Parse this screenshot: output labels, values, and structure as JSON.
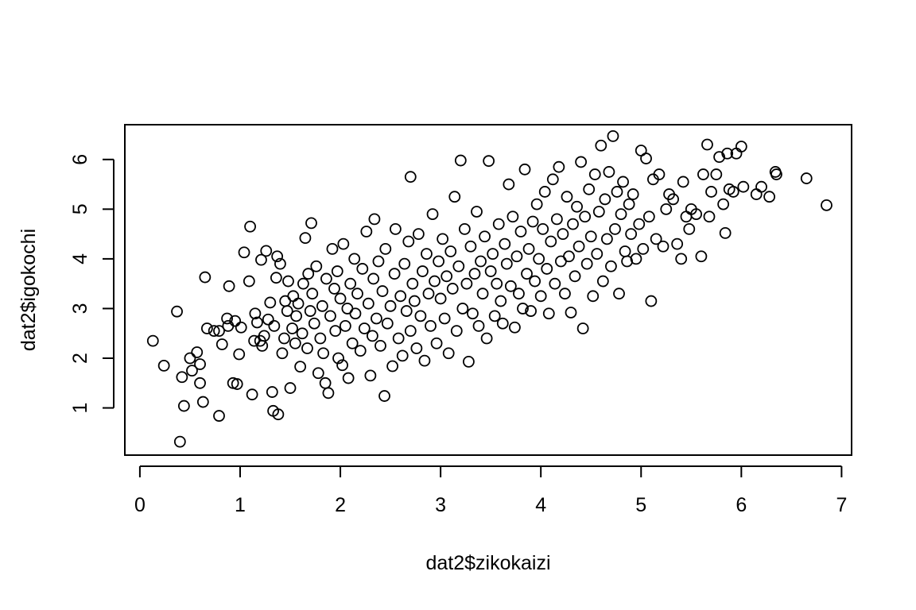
{
  "chart_data": {
    "type": "scatter",
    "title": "",
    "xlabel": "dat2$zikokaizi",
    "ylabel": "dat2$igokochi",
    "xlim": [
      -0.15,
      7.1
    ],
    "ylim": [
      0.05,
      6.7
    ],
    "xticks": [
      "0",
      "1",
      "2",
      "3",
      "4",
      "5",
      "6",
      "7"
    ],
    "yticks": [
      "1",
      "2",
      "3",
      "4",
      "5",
      "6"
    ],
    "grid": false,
    "legend": "none",
    "marker": "open-circle",
    "color": "#000000",
    "points": [
      [
        0.13,
        2.35
      ],
      [
        0.24,
        1.85
      ],
      [
        0.37,
        2.94
      ],
      [
        0.4,
        0.32
      ],
      [
        0.44,
        1.04
      ],
      [
        0.42,
        1.62
      ],
      [
        0.5,
        2.0
      ],
      [
        0.52,
        1.75
      ],
      [
        0.57,
        2.12
      ],
      [
        0.6,
        1.88
      ],
      [
        0.6,
        1.5
      ],
      [
        0.63,
        1.12
      ],
      [
        0.65,
        3.63
      ],
      [
        0.67,
        2.6
      ],
      [
        0.74,
        2.55
      ],
      [
        0.79,
        2.55
      ],
      [
        0.79,
        0.84
      ],
      [
        0.82,
        2.28
      ],
      [
        0.87,
        2.8
      ],
      [
        0.88,
        2.65
      ],
      [
        0.89,
        3.45
      ],
      [
        0.93,
        1.5
      ],
      [
        0.95,
        2.75
      ],
      [
        0.97,
        1.48
      ],
      [
        0.99,
        2.08
      ],
      [
        1.01,
        2.62
      ],
      [
        1.04,
        4.13
      ],
      [
        1.09,
        3.55
      ],
      [
        1.1,
        4.65
      ],
      [
        1.12,
        1.27
      ],
      [
        1.14,
        2.35
      ],
      [
        1.15,
        2.9
      ],
      [
        1.17,
        2.72
      ],
      [
        1.2,
        2.35
      ],
      [
        1.21,
        3.98
      ],
      [
        1.22,
        2.25
      ],
      [
        1.24,
        2.45
      ],
      [
        1.26,
        4.16
      ],
      [
        1.28,
        2.78
      ],
      [
        1.3,
        3.12
      ],
      [
        1.32,
        1.32
      ],
      [
        1.33,
        0.94
      ],
      [
        1.34,
        2.65
      ],
      [
        1.36,
        3.62
      ],
      [
        1.37,
        4.05
      ],
      [
        1.38,
        0.87
      ],
      [
        1.4,
        3.9
      ],
      [
        1.42,
        2.1
      ],
      [
        1.44,
        2.4
      ],
      [
        1.45,
        3.15
      ],
      [
        1.47,
        2.95
      ],
      [
        1.48,
        3.55
      ],
      [
        1.5,
        1.4
      ],
      [
        1.52,
        2.6
      ],
      [
        1.53,
        3.25
      ],
      [
        1.55,
        2.3
      ],
      [
        1.56,
        2.85
      ],
      [
        1.58,
        3.1
      ],
      [
        1.6,
        1.83
      ],
      [
        1.62,
        2.5
      ],
      [
        1.63,
        3.5
      ],
      [
        1.65,
        4.42
      ],
      [
        1.67,
        2.2
      ],
      [
        1.68,
        3.7
      ],
      [
        1.7,
        2.95
      ],
      [
        1.71,
        4.72
      ],
      [
        1.72,
        3.3
      ],
      [
        1.74,
        2.7
      ],
      [
        1.76,
        3.85
      ],
      [
        1.78,
        1.7
      ],
      [
        1.8,
        2.4
      ],
      [
        1.82,
        3.05
      ],
      [
        1.83,
        2.1
      ],
      [
        1.85,
        1.5
      ],
      [
        1.86,
        3.6
      ],
      [
        1.88,
        1.3
      ],
      [
        1.9,
        2.85
      ],
      [
        1.92,
        4.2
      ],
      [
        1.94,
        3.4
      ],
      [
        1.95,
        2.55
      ],
      [
        1.97,
        3.75
      ],
      [
        1.98,
        2.0
      ],
      [
        2.0,
        3.2
      ],
      [
        2.02,
        1.86
      ],
      [
        2.03,
        4.3
      ],
      [
        2.05,
        2.65
      ],
      [
        2.07,
        3.0
      ],
      [
        2.08,
        1.6
      ],
      [
        2.1,
        3.5
      ],
      [
        2.12,
        2.3
      ],
      [
        2.14,
        4.0
      ],
      [
        2.15,
        2.9
      ],
      [
        2.17,
        3.3
      ],
      [
        2.2,
        2.15
      ],
      [
        2.22,
        3.8
      ],
      [
        2.24,
        2.6
      ],
      [
        2.26,
        4.55
      ],
      [
        2.28,
        3.1
      ],
      [
        2.3,
        1.65
      ],
      [
        2.32,
        2.45
      ],
      [
        2.33,
        3.6
      ],
      [
        2.34,
        4.8
      ],
      [
        2.36,
        2.8
      ],
      [
        2.38,
        3.95
      ],
      [
        2.4,
        2.25
      ],
      [
        2.42,
        3.35
      ],
      [
        2.44,
        1.24
      ],
      [
        2.45,
        4.2
      ],
      [
        2.47,
        2.7
      ],
      [
        2.5,
        3.05
      ],
      [
        2.52,
        1.84
      ],
      [
        2.54,
        3.7
      ],
      [
        2.55,
        4.6
      ],
      [
        2.58,
        2.4
      ],
      [
        2.6,
        3.25
      ],
      [
        2.62,
        2.05
      ],
      [
        2.64,
        3.9
      ],
      [
        2.66,
        2.95
      ],
      [
        2.68,
        4.35
      ],
      [
        2.7,
        5.65
      ],
      [
        2.7,
        2.55
      ],
      [
        2.72,
        3.5
      ],
      [
        2.74,
        3.15
      ],
      [
        2.76,
        2.2
      ],
      [
        2.78,
        4.5
      ],
      [
        2.8,
        2.85
      ],
      [
        2.82,
        3.75
      ],
      [
        2.84,
        1.95
      ],
      [
        2.86,
        4.1
      ],
      [
        2.88,
        3.3
      ],
      [
        2.9,
        2.65
      ],
      [
        2.92,
        4.9
      ],
      [
        2.94,
        3.55
      ],
      [
        2.96,
        2.3
      ],
      [
        2.98,
        3.95
      ],
      [
        3.0,
        3.2
      ],
      [
        3.02,
        4.4
      ],
      [
        3.04,
        2.8
      ],
      [
        3.06,
        3.65
      ],
      [
        3.08,
        2.1
      ],
      [
        3.1,
        4.15
      ],
      [
        3.12,
        3.4
      ],
      [
        3.14,
        5.25
      ],
      [
        3.16,
        2.55
      ],
      [
        3.18,
        3.85
      ],
      [
        3.2,
        5.98
      ],
      [
        3.22,
        3.0
      ],
      [
        3.24,
        4.6
      ],
      [
        3.26,
        3.5
      ],
      [
        3.28,
        1.93
      ],
      [
        3.3,
        4.25
      ],
      [
        3.32,
        2.9
      ],
      [
        3.34,
        3.7
      ],
      [
        3.36,
        4.95
      ],
      [
        3.38,
        2.65
      ],
      [
        3.4,
        3.95
      ],
      [
        3.42,
        3.3
      ],
      [
        3.44,
        4.45
      ],
      [
        3.46,
        2.4
      ],
      [
        3.48,
        5.97
      ],
      [
        3.5,
        3.75
      ],
      [
        3.52,
        4.1
      ],
      [
        3.54,
        2.85
      ],
      [
        3.56,
        3.5
      ],
      [
        3.58,
        4.7
      ],
      [
        3.6,
        3.15
      ],
      [
        3.62,
        2.7
      ],
      [
        3.64,
        4.3
      ],
      [
        3.66,
        3.9
      ],
      [
        3.68,
        5.5
      ],
      [
        3.7,
        3.45
      ],
      [
        3.72,
        4.85
      ],
      [
        3.74,
        2.62
      ],
      [
        3.76,
        4.05
      ],
      [
        3.78,
        3.3
      ],
      [
        3.8,
        4.55
      ],
      [
        3.82,
        3.0
      ],
      [
        3.84,
        5.8
      ],
      [
        3.86,
        3.7
      ],
      [
        3.88,
        4.2
      ],
      [
        3.9,
        2.95
      ],
      [
        3.92,
        4.75
      ],
      [
        3.94,
        3.55
      ],
      [
        3.96,
        5.1
      ],
      [
        3.98,
        4.0
      ],
      [
        4.0,
        3.25
      ],
      [
        4.02,
        4.6
      ],
      [
        4.04,
        5.35
      ],
      [
        4.06,
        3.8
      ],
      [
        4.08,
        2.9
      ],
      [
        4.1,
        4.35
      ],
      [
        4.12,
        5.6
      ],
      [
        4.14,
        3.5
      ],
      [
        4.16,
        4.8
      ],
      [
        4.18,
        5.85
      ],
      [
        4.2,
        3.95
      ],
      [
        4.22,
        4.5
      ],
      [
        4.24,
        3.3
      ],
      [
        4.26,
        5.25
      ],
      [
        4.28,
        4.05
      ],
      [
        4.3,
        2.92
      ],
      [
        4.32,
        4.7
      ],
      [
        4.34,
        3.65
      ],
      [
        4.36,
        5.05
      ],
      [
        4.38,
        4.25
      ],
      [
        4.4,
        5.95
      ],
      [
        4.42,
        2.6
      ],
      [
        4.44,
        4.85
      ],
      [
        4.46,
        3.9
      ],
      [
        4.48,
        5.4
      ],
      [
        4.5,
        4.45
      ],
      [
        4.52,
        3.25
      ],
      [
        4.54,
        5.7
      ],
      [
        4.56,
        4.1
      ],
      [
        4.58,
        4.95
      ],
      [
        4.6,
        6.28
      ],
      [
        4.62,
        3.55
      ],
      [
        4.64,
        5.2
      ],
      [
        4.66,
        4.4
      ],
      [
        4.68,
        5.75
      ],
      [
        4.7,
        3.85
      ],
      [
        4.72,
        6.47
      ],
      [
        4.74,
        4.6
      ],
      [
        4.76,
        5.35
      ],
      [
        4.78,
        3.3
      ],
      [
        4.8,
        4.9
      ],
      [
        4.82,
        5.55
      ],
      [
        4.84,
        4.15
      ],
      [
        4.86,
        3.95
      ],
      [
        4.88,
        5.1
      ],
      [
        4.9,
        4.5
      ],
      [
        4.92,
        5.3
      ],
      [
        4.95,
        4.0
      ],
      [
        4.98,
        4.7
      ],
      [
        5.0,
        6.18
      ],
      [
        5.02,
        4.2
      ],
      [
        5.05,
        6.02
      ],
      [
        5.08,
        4.85
      ],
      [
        5.1,
        3.15
      ],
      [
        5.12,
        5.6
      ],
      [
        5.15,
        4.4
      ],
      [
        5.18,
        5.7
      ],
      [
        5.22,
        4.25
      ],
      [
        5.25,
        5.0
      ],
      [
        5.28,
        5.3
      ],
      [
        5.32,
        5.2
      ],
      [
        5.36,
        4.3
      ],
      [
        5.4,
        4.0
      ],
      [
        5.42,
        5.55
      ],
      [
        5.45,
        4.85
      ],
      [
        5.48,
        4.6
      ],
      [
        5.5,
        5.0
      ],
      [
        5.55,
        4.9
      ],
      [
        5.6,
        4.05
      ],
      [
        5.62,
        5.7
      ],
      [
        5.66,
        6.3
      ],
      [
        5.68,
        4.85
      ],
      [
        5.7,
        5.35
      ],
      [
        5.75,
        5.7
      ],
      [
        5.78,
        6.05
      ],
      [
        5.82,
        5.1
      ],
      [
        5.84,
        4.52
      ],
      [
        5.86,
        6.12
      ],
      [
        5.88,
        5.4
      ],
      [
        5.92,
        5.35
      ],
      [
        5.95,
        6.12
      ],
      [
        6.0,
        6.26
      ],
      [
        6.02,
        5.45
      ],
      [
        6.15,
        5.3
      ],
      [
        6.2,
        5.45
      ],
      [
        6.28,
        5.25
      ],
      [
        6.34,
        5.75
      ],
      [
        6.35,
        5.7
      ],
      [
        6.65,
        5.62
      ],
      [
        6.85,
        5.08
      ]
    ]
  }
}
